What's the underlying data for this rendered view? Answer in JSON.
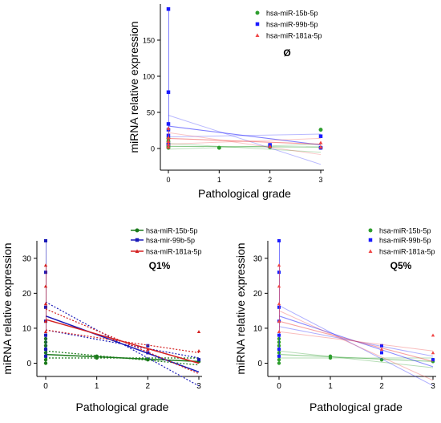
{
  "chart_data": [
    {
      "type": "scatter",
      "panel_label": "Ø",
      "title": "",
      "xlabel": "Pathological grade",
      "ylabel": "miRNA relative expression",
      "xlim": [
        0,
        3
      ],
      "ylim": [
        -30,
        200
      ],
      "xticks": [
        0,
        1,
        2,
        3
      ],
      "yticks": [
        0,
        50,
        100,
        150
      ],
      "legend_position": "top-right",
      "fit_style": "solid",
      "series": [
        {
          "name": "hsa-miR-15b-5p",
          "color": "#2e9e2e",
          "marker": "circle",
          "x": [
            0,
            0,
            0,
            0,
            0,
            0,
            1,
            2,
            3,
            3
          ],
          "y": [
            1,
            3,
            5,
            7,
            10,
            14,
            1,
            2,
            1,
            26
          ],
          "fit": [
            3,
            2
          ],
          "band": 4
        },
        {
          "name": "hsa-miR-99b-5p",
          "color": "#1a1aff",
          "marker": "square",
          "x": [
            0,
            0,
            0,
            0,
            0,
            0,
            2,
            3,
            3
          ],
          "y": [
            193,
            78,
            34,
            26,
            18,
            6,
            5,
            17,
            1
          ],
          "fit": [
            31,
            5
          ],
          "band": 15
        },
        {
          "name": "hsa-miR-181a-5p",
          "color": "#f04545",
          "marker": "triangle",
          "x": [
            0,
            0,
            0,
            0,
            0,
            2,
            3,
            3
          ],
          "y": [
            28,
            15,
            10,
            6,
            2,
            3,
            8,
            2
          ],
          "fit": [
            14,
            6
          ],
          "band": 8
        }
      ]
    },
    {
      "type": "scatter",
      "panel_label": "Q1%",
      "title": "",
      "xlabel": "Pathological grade",
      "ylabel": "miRNA relative expression",
      "xlim": [
        0,
        3
      ],
      "ylim": [
        -7,
        35
      ],
      "xticks": [
        0,
        1,
        2,
        3
      ],
      "yticks": [
        0,
        10,
        20,
        30
      ],
      "legend_position": "top-right",
      "fit_style": "dotted",
      "series": [
        {
          "name": "hsa-miR-15b-5p",
          "color": "#1a7a1a",
          "marker": "circle",
          "x": [
            0,
            0,
            0,
            0,
            0,
            0,
            0,
            0,
            1,
            1,
            2,
            3,
            3
          ],
          "y": [
            0,
            1,
            2,
            3,
            4,
            5,
            6,
            7,
            2,
            1.5,
            1,
            1,
            0.5
          ],
          "fit": [
            2.5,
            0.5
          ],
          "band": 1
        },
        {
          "name": "hsa-mir-99b-5p",
          "color": "#1a1ab8",
          "marker": "square",
          "x": [
            0,
            0,
            0,
            0,
            0,
            0,
            0,
            2,
            2,
            3
          ],
          "y": [
            35,
            26,
            16,
            12,
            8,
            4,
            2,
            5,
            3,
            1
          ],
          "fit": [
            13.5,
            -2.5
          ],
          "band": 4
        },
        {
          "name": "hsa-miR-181a-5p",
          "color": "#d42020",
          "marker": "triangle",
          "x": [
            0,
            0,
            0,
            0,
            0,
            2,
            3,
            3
          ],
          "y": [
            28,
            22,
            17,
            12,
            9,
            4,
            9,
            3.5
          ],
          "fit": [
            12.5,
            0
          ],
          "band": 3
        }
      ]
    },
    {
      "type": "scatter",
      "panel_label": "Q5%",
      "title": "",
      "xlabel": "Pathological grade",
      "ylabel": "miRNA relative expression",
      "xlim": [
        0,
        3
      ],
      "ylim": [
        -7,
        35
      ],
      "xticks": [
        0,
        1,
        2,
        3
      ],
      "yticks": [
        0,
        10,
        20,
        30
      ],
      "legend_position": "top-right",
      "fit_style": "faint",
      "series": [
        {
          "name": "hsa-miR-15b-5p",
          "color": "#2e9e2e",
          "marker": "circle",
          "x": [
            0,
            0,
            0,
            0,
            0,
            0,
            0,
            0,
            1,
            1,
            2,
            3,
            3
          ],
          "y": [
            0,
            1,
            2,
            3,
            4,
            5,
            6,
            7,
            2,
            1.5,
            1,
            1,
            0.5
          ],
          "fit": [
            2.5,
            0.5
          ],
          "band": 1
        },
        {
          "name": "hsa-miR-99b-5p",
          "color": "#1a1aff",
          "marker": "square",
          "x": [
            0,
            0,
            0,
            0,
            0,
            0,
            0,
            2,
            2,
            3
          ],
          "y": [
            35,
            26,
            16,
            12,
            8,
            4,
            2,
            5,
            3,
            1
          ],
          "fit": [
            13.5,
            -1
          ],
          "band": 3
        },
        {
          "name": "hsa-miR-181a-5p",
          "color": "#f04545",
          "marker": "triangle",
          "x": [
            0,
            0,
            0,
            0,
            0,
            2,
            3,
            3
          ],
          "y": [
            28,
            22,
            17,
            12,
            9,
            4,
            8,
            3
          ],
          "fit": [
            12,
            0.5
          ],
          "band": 3
        }
      ]
    }
  ]
}
